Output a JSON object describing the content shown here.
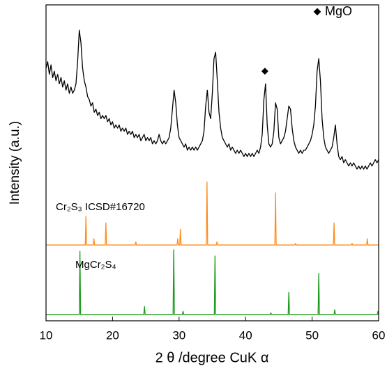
{
  "chart_data": {
    "type": "line",
    "xlabel": "2 θ /degree CuK α",
    "ylabel": "Intensity (a.u.)",
    "xlim": [
      10,
      60
    ],
    "xticks": [
      10,
      20,
      30,
      40,
      50,
      60
    ],
    "ylim": [
      0,
      100
    ],
    "series": [
      {
        "name": "Sample",
        "color": "#000000",
        "x": [
          10,
          10.25,
          10.5,
          10.75,
          11,
          11.25,
          11.5,
          11.75,
          12,
          12.25,
          12.5,
          12.75,
          13,
          13.25,
          13.5,
          13.75,
          14,
          14.25,
          14.5,
          14.75,
          15,
          15.25,
          15.5,
          15.75,
          16,
          16.25,
          16.5,
          16.75,
          17,
          17.25,
          17.5,
          17.75,
          18,
          18.25,
          18.5,
          18.75,
          19,
          19.25,
          19.5,
          19.75,
          20,
          20.25,
          20.5,
          20.75,
          21,
          21.25,
          21.5,
          21.75,
          22,
          22.25,
          22.5,
          22.75,
          23,
          23.25,
          23.5,
          23.75,
          24,
          24.25,
          24.5,
          24.75,
          25,
          25.25,
          25.5,
          25.75,
          26,
          26.25,
          26.5,
          26.75,
          27,
          27.25,
          27.5,
          27.75,
          28,
          28.25,
          28.5,
          28.75,
          29,
          29.25,
          29.5,
          29.75,
          30,
          30.25,
          30.5,
          30.75,
          31,
          31.25,
          31.5,
          31.75,
          32,
          32.25,
          32.5,
          32.75,
          33,
          33.25,
          33.5,
          33.75,
          34,
          34.25,
          34.5,
          34.75,
          35,
          35.25,
          35.5,
          35.75,
          36,
          36.25,
          36.5,
          36.75,
          37,
          37.25,
          37.5,
          37.75,
          38,
          38.25,
          38.5,
          38.75,
          39,
          39.25,
          39.5,
          39.75,
          40,
          40.25,
          40.5,
          40.75,
          41,
          41.25,
          41.5,
          41.75,
          42,
          42.25,
          42.5,
          42.75,
          43,
          43.25,
          43.5,
          43.75,
          44,
          44.25,
          44.5,
          44.75,
          45,
          45.25,
          45.5,
          45.75,
          46,
          46.25,
          46.5,
          46.75,
          47,
          47.25,
          47.5,
          47.75,
          48,
          48.25,
          48.5,
          48.75,
          49,
          49.25,
          49.5,
          49.75,
          50,
          50.25,
          50.5,
          50.75,
          51,
          51.25,
          51.5,
          51.75,
          52,
          52.25,
          52.5,
          52.75,
          53,
          53.25,
          53.5,
          53.75,
          54,
          54.25,
          54.5,
          54.75,
          55,
          55.25,
          55.5,
          55.75,
          56,
          56.25,
          56.5,
          56.75,
          57,
          57.25,
          57.5,
          57.75,
          58,
          58.25,
          58.5,
          58.75,
          59,
          59.25,
          59.5,
          59.75,
          60
        ],
        "values": [
          80,
          82,
          78,
          81,
          77,
          79,
          76,
          78,
          75,
          77,
          74,
          76,
          73,
          75,
          72,
          74,
          72,
          73,
          75,
          82,
          92,
          88,
          80,
          76,
          74,
          71,
          70,
          68,
          69,
          66,
          67,
          65,
          66,
          64,
          65,
          64,
          65,
          63,
          64,
          62,
          63,
          61,
          62,
          61,
          62,
          60,
          61,
          60,
          61,
          59,
          60,
          59,
          60,
          58,
          59,
          58,
          59,
          57,
          58,
          59,
          57,
          58,
          57,
          58,
          56,
          57,
          56,
          57,
          59,
          57,
          56,
          57,
          56,
          57,
          58,
          61,
          67,
          73,
          69,
          62,
          58,
          57,
          56,
          55,
          56,
          54,
          55,
          54,
          55,
          54,
          55,
          54,
          55,
          56,
          57,
          60,
          68,
          73,
          66,
          64,
          72,
          83,
          85,
          76,
          66,
          61,
          58,
          57,
          56,
          55,
          56,
          54,
          55,
          54,
          53,
          54,
          53,
          54,
          53,
          52,
          53,
          52,
          53,
          52,
          53,
          52,
          53,
          54,
          53,
          55,
          59,
          70,
          75,
          62,
          56,
          55,
          56,
          60,
          69,
          67,
          58,
          56,
          57,
          58,
          60,
          64,
          68,
          67,
          61,
          57,
          55,
          54,
          53,
          54,
          53,
          54,
          54,
          55,
          56,
          57,
          59,
          62,
          68,
          79,
          83,
          76,
          64,
          58,
          55,
          54,
          53,
          54,
          55,
          58,
          62,
          56,
          52,
          51,
          52,
          50,
          51,
          50,
          49,
          50,
          49,
          50,
          49,
          48,
          49,
          48,
          49,
          48,
          49,
          48,
          49,
          50,
          49,
          50,
          51,
          50,
          51
        ]
      },
      {
        "name": "Cr₂S₃ ICSD#16720",
        "color": "#ff8c1a",
        "x": [
          10,
          15.9,
          16,
          16.1,
          17.1,
          17.2,
          17.3,
          18.9,
          19,
          19.1,
          23.4,
          23.5,
          23.6,
          29.7,
          29.8,
          29.9,
          30.1,
          30.2,
          30.3,
          34.1,
          34.2,
          34.3,
          35.6,
          35.7,
          35.8,
          44.4,
          44.5,
          44.6,
          47.4,
          47.5,
          47.6,
          53.2,
          53.3,
          53.4,
          55.9,
          56,
          56.1,
          58.2,
          58.3,
          58.4,
          60
        ],
        "values": [
          24,
          24,
          33,
          24,
          24,
          26,
          24,
          24,
          31,
          24,
          24,
          25,
          24,
          24,
          26,
          24,
          24,
          29,
          24,
          24,
          44,
          24,
          24,
          25,
          24,
          24,
          40.5,
          24,
          24,
          24.5,
          24,
          24,
          31,
          24,
          24,
          24.5,
          24,
          24,
          26,
          24,
          24
        ]
      },
      {
        "name": "MgCr₂S₄",
        "color": "#1a9a1a",
        "x": [
          10,
          15,
          15.1,
          15.2,
          24.7,
          24.8,
          24.9,
          29.1,
          29.2,
          29.3,
          30.5,
          30.6,
          30.7,
          35.3,
          35.4,
          35.5,
          43.7,
          43.8,
          43.9,
          46.4,
          46.5,
          46.6,
          50.9,
          51,
          51.1,
          53.3,
          53.4,
          53.5,
          59.8,
          59.9,
          60
        ],
        "values": [
          2,
          2,
          22,
          2,
          2,
          4.5,
          2,
          2,
          22.5,
          2,
          2,
          3,
          2,
          2,
          20.5,
          2,
          2,
          2.5,
          2,
          2,
          9,
          2,
          2,
          15,
          2,
          2,
          3.5,
          2,
          2,
          3,
          2
        ]
      }
    ],
    "peak_markers": {
      "x": [
        42.9
      ],
      "values": [
        79
      ]
    },
    "legend": {
      "symbol": "◆",
      "label": "MgO"
    }
  }
}
